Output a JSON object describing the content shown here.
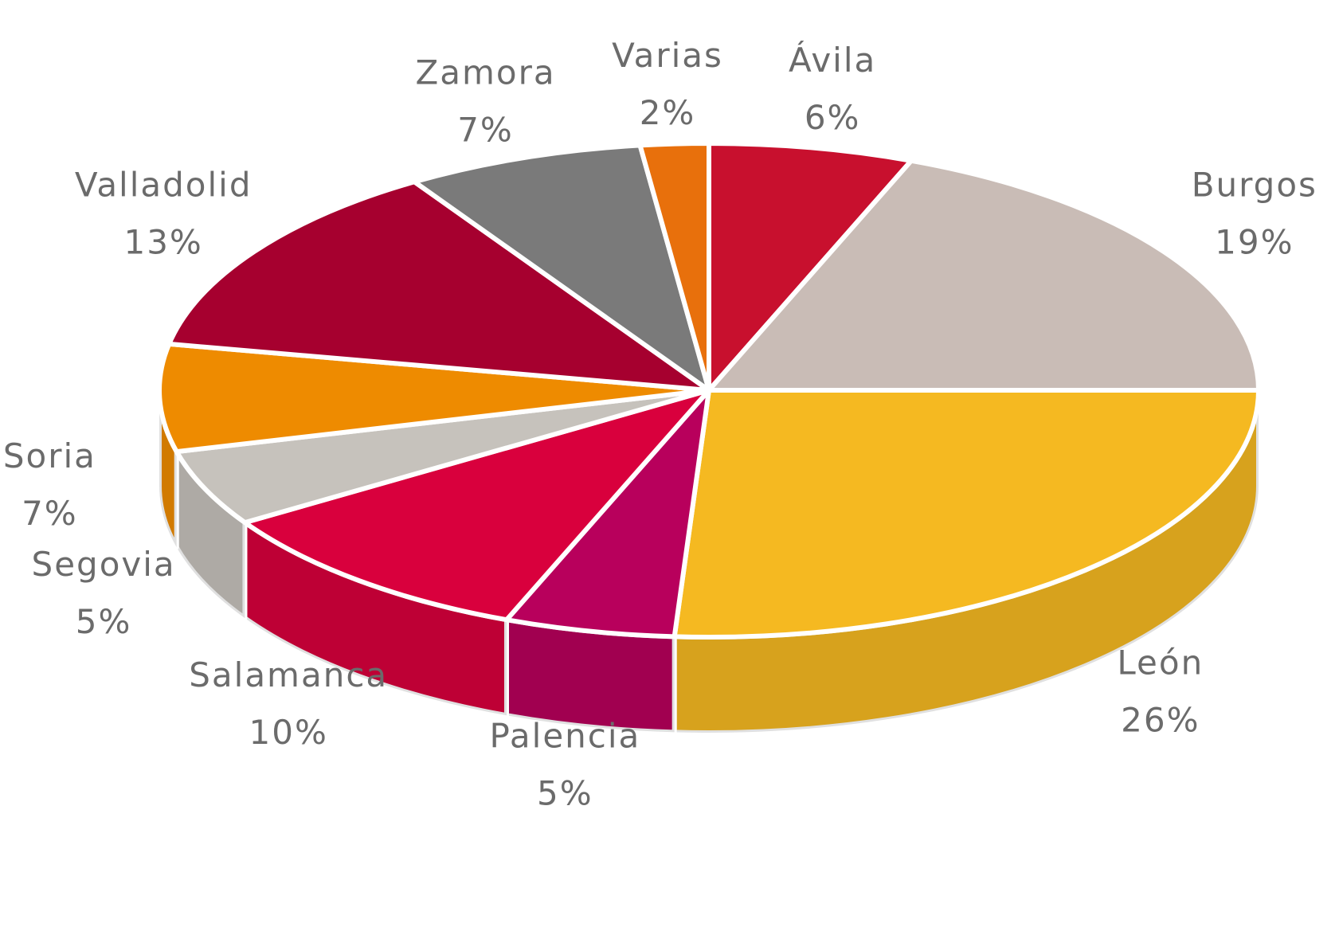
{
  "chart_data": {
    "type": "pie",
    "categories": [
      "Ávila",
      "Burgos",
      "León",
      "Palencia",
      "Salamanca",
      "Segovia",
      "Soria",
      "Valladolid",
      "Zamora",
      "Varias"
    ],
    "values": [
      6,
      19,
      26,
      5,
      10,
      5,
      7,
      13,
      7,
      2
    ],
    "value_labels": [
      "6%",
      "19%",
      "26%",
      "5%",
      "10%",
      "5%",
      "7%",
      "13%",
      "7%",
      "2%"
    ],
    "colors": [
      "#c8102e",
      "#c9bcb6",
      "#f5b921",
      "#b8005c",
      "#d9003d",
      "#c6c2bc",
      "#ee8b00",
      "#a6002f",
      "#7a7a7a",
      "#e8700c"
    ]
  }
}
